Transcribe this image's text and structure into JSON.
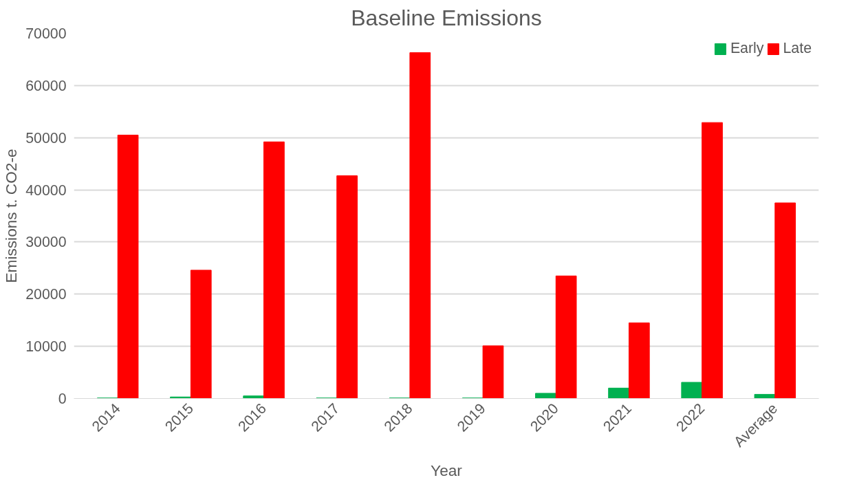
{
  "chart_data": {
    "type": "bar",
    "title": "Baseline Emissions",
    "xlabel": "Year",
    "ylabel": "Emissions t. CO2-e",
    "categories": [
      "2014",
      "2015",
      "2016",
      "2017",
      "2018",
      "2019",
      "2020",
      "2021",
      "2022",
      "Average"
    ],
    "series": [
      {
        "name": "Early",
        "color": "#00b050",
        "values": [
          100,
          300,
          500,
          100,
          100,
          100,
          1000,
          2000,
          3100,
          800
        ]
      },
      {
        "name": "Late",
        "color": "#ff0000",
        "values": [
          50500,
          24600,
          49200,
          42700,
          66300,
          10100,
          23500,
          14500,
          52900,
          37500
        ]
      }
    ],
    "ylim": [
      0,
      70000
    ],
    "yticks": [
      0,
      10000,
      20000,
      30000,
      40000,
      50000,
      60000,
      70000
    ],
    "grid": "y",
    "legend": "top right"
  }
}
